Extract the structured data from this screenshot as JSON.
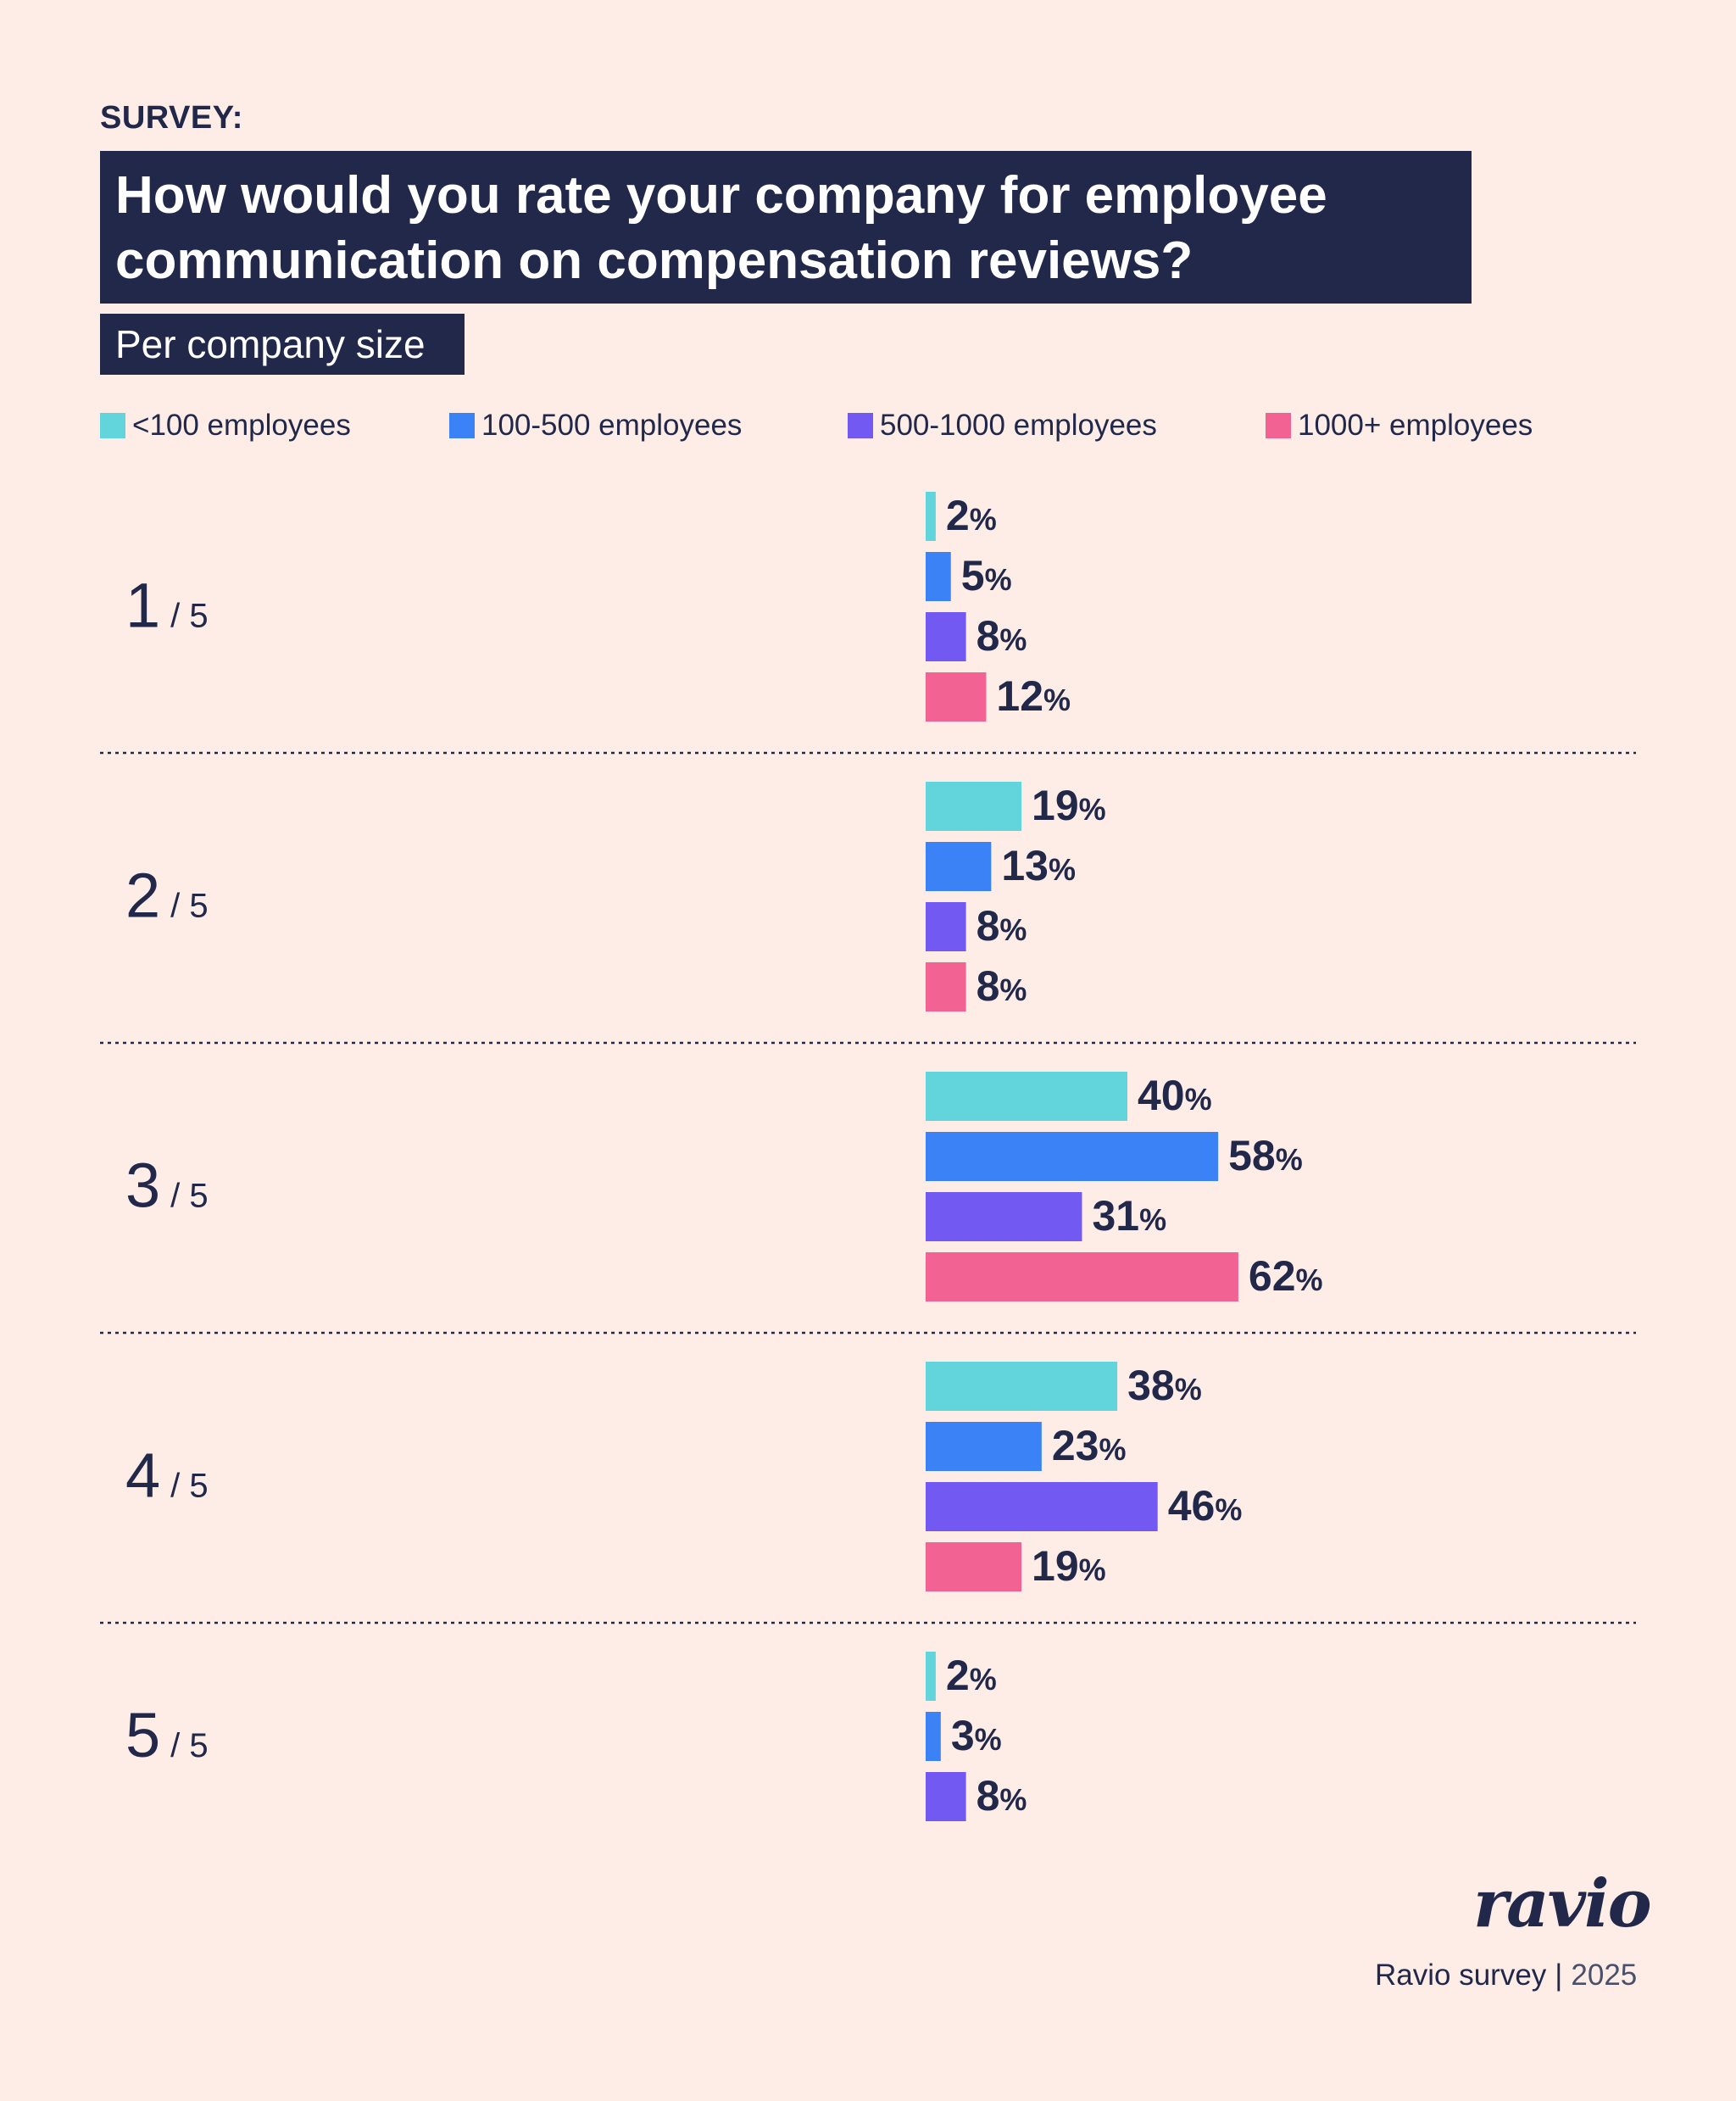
{
  "header": {
    "kicker": "SURVEY:",
    "title": "How would you rate your company for employee communication on compensation reviews?",
    "subtitle": "Per company size"
  },
  "legend": [
    {
      "label": "<100 employees",
      "color": "#62d4dc"
    },
    {
      "label": "100-500 employees",
      "color": "#3b82f6"
    },
    {
      "label": "500-1000 employees",
      "color": "#7159f2"
    },
    {
      "label": "1000+ employees",
      "color": "#f26293"
    }
  ],
  "chart_data": {
    "type": "bar",
    "orientation": "horizontal",
    "categories": [
      "1 / 5",
      "2 / 5",
      "3 / 5",
      "4 / 5",
      "5 / 5"
    ],
    "category_main": [
      "1",
      "2",
      "3",
      "4",
      "5"
    ],
    "category_suffix": "/ 5",
    "unit": "%",
    "series": [
      {
        "name": "<100 employees",
        "color": "#62d4dc",
        "values": [
          2,
          19,
          40,
          38,
          2
        ]
      },
      {
        "name": "100-500 employees",
        "color": "#3b82f6",
        "values": [
          5,
          13,
          58,
          23,
          3
        ]
      },
      {
        "name": "500-1000 employees",
        "color": "#7159f2",
        "values": [
          8,
          8,
          31,
          46,
          8
        ]
      },
      {
        "name": "1000+ employees",
        "color": "#f26293",
        "values": [
          12,
          8,
          62,
          19,
          null
        ]
      }
    ],
    "grid": false,
    "legend_position": "top"
  },
  "footer": {
    "brand": "ravio",
    "source": "Ravio survey",
    "year": "2025"
  }
}
